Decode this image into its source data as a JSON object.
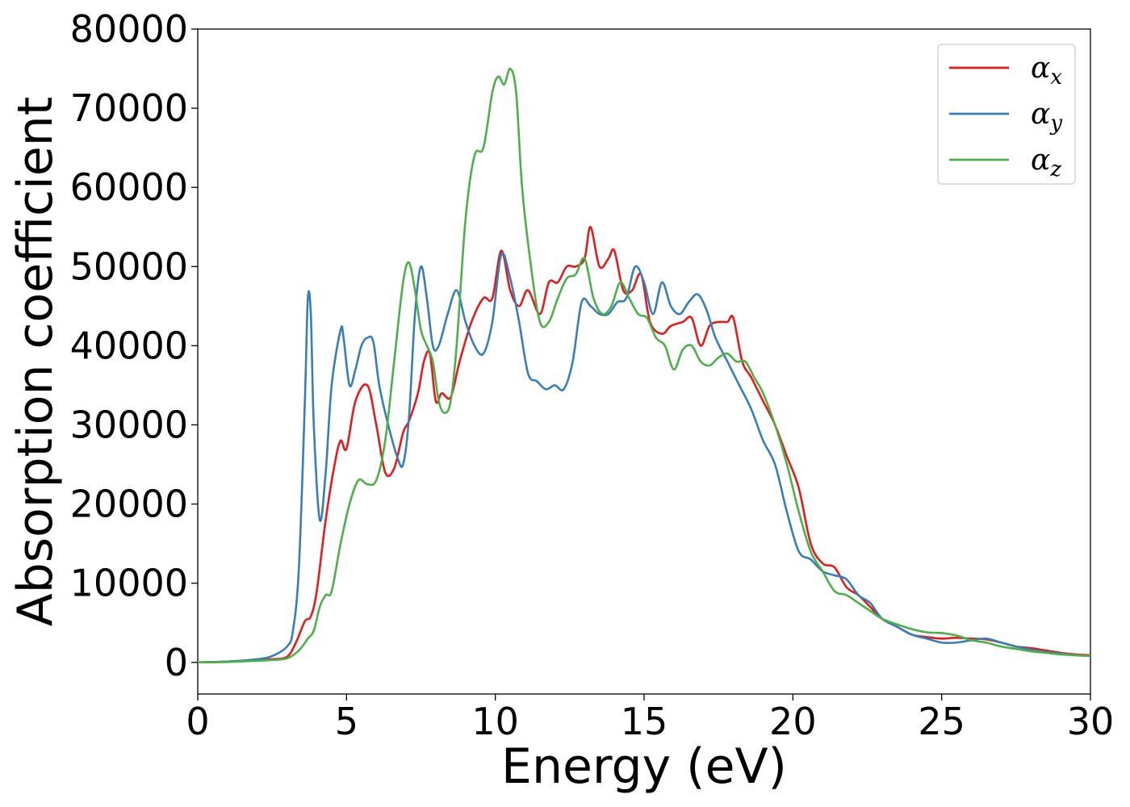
{
  "chart_data": {
    "type": "line",
    "title": "",
    "xlabel": "Energy (eV)",
    "ylabel": "Absorption coefficient",
    "xlim": [
      0,
      30
    ],
    "ylim": [
      -4000,
      80000
    ],
    "xticks": [
      0,
      5,
      10,
      15,
      20,
      25,
      30
    ],
    "yticks": [
      0,
      10000,
      20000,
      30000,
      40000,
      50000,
      60000,
      70000,
      80000
    ],
    "grid": false,
    "legend_position": "top-right",
    "series": [
      {
        "name": "α",
        "subscript": "x",
        "color": "#e41a1c",
        "x": [
          0,
          1,
          2,
          2.5,
          3,
          3.3,
          3.6,
          3.8,
          4,
          4.3,
          4.6,
          4.8,
          5,
          5.3,
          5.7,
          6,
          6.3,
          6.6,
          6.9,
          7.1,
          7.4,
          7.6,
          7.8,
          8,
          8.2,
          8.5,
          8.8,
          9.2,
          9.6,
          9.9,
          10.2,
          10.5,
          10.8,
          11.1,
          11.5,
          11.8,
          12.1,
          12.4,
          12.7,
          13,
          13.2,
          13.5,
          13.8,
          14,
          14.3,
          14.6,
          14.9,
          15.2,
          15.6,
          15.9,
          16.3,
          16.6,
          16.9,
          17.2,
          17.5,
          17.8,
          18,
          18.3,
          18.6,
          19,
          19.4,
          19.8,
          20.2,
          20.6,
          21,
          21.4,
          21.8,
          22.2,
          22.6,
          23,
          23.5,
          24,
          24.5,
          25,
          25.5,
          26,
          26.5,
          27,
          27.5,
          28,
          28.5,
          29,
          29.5,
          30
        ],
        "y": [
          0,
          100,
          300,
          400,
          700,
          2500,
          5200,
          5800,
          9000,
          18000,
          25000,
          28000,
          27000,
          33000,
          35000,
          30000,
          24000,
          24500,
          29000,
          30500,
          34000,
          38000,
          39000,
          33000,
          34000,
          33500,
          38000,
          43000,
          46000,
          46000,
          52000,
          47000,
          45000,
          47000,
          44000,
          48000,
          48000,
          50000,
          50000,
          51000,
          55000,
          50000,
          51000,
          52000,
          47000,
          47000,
          49000,
          43000,
          41500,
          42500,
          43000,
          43500,
          40000,
          42500,
          43000,
          43000,
          43500,
          38000,
          36000,
          33000,
          30000,
          26000,
          22000,
          15000,
          12500,
          12000,
          9500,
          8500,
          7000,
          5500,
          4500,
          3500,
          3200,
          3000,
          3100,
          3000,
          2900,
          2500,
          2000,
          1800,
          1500,
          1200,
          1000,
          900
        ]
      },
      {
        "name": "α",
        "subscript": "y",
        "color": "#377eb8",
        "x": [
          0,
          1,
          2,
          2.5,
          3,
          3.2,
          3.4,
          3.6,
          3.7,
          3.8,
          3.9,
          4.1,
          4.3,
          4.5,
          4.8,
          4.9,
          5.1,
          5.3,
          5.5,
          5.7,
          5.9,
          6.1,
          6.4,
          6.7,
          6.9,
          7.1,
          7.3,
          7.5,
          7.7,
          7.9,
          8.1,
          8.4,
          8.7,
          9.0,
          9.3,
          9.6,
          9.9,
          10.2,
          10.5,
          10.8,
          11.1,
          11.4,
          11.7,
          12.0,
          12.3,
          12.6,
          12.9,
          13.2,
          13.5,
          13.8,
          14.1,
          14.4,
          14.7,
          15.0,
          15.3,
          15.6,
          15.9,
          16.2,
          16.5,
          16.8,
          17.1,
          17.4,
          17.8,
          18.2,
          18.6,
          19.0,
          19.4,
          19.8,
          20.2,
          20.6,
          21.0,
          21.4,
          21.8,
          22.2,
          22.6,
          23.0,
          23.5,
          24.0,
          24.5,
          25.0,
          25.5,
          26.0,
          26.5,
          27.0,
          27.5,
          28.0,
          28.5,
          29.0,
          29.5,
          30.0
        ],
        "y": [
          0,
          100,
          400,
          800,
          2000,
          4000,
          12000,
          33000,
          46000,
          44000,
          30000,
          18000,
          24000,
          35000,
          42000,
          41000,
          35000,
          37000,
          40000,
          41000,
          40500,
          35000,
          30000,
          26000,
          25000,
          31000,
          44000,
          50000,
          46000,
          40000,
          40000,
          44000,
          47000,
          43000,
          40000,
          39000,
          43000,
          51500,
          48500,
          43000,
          36500,
          35500,
          34500,
          35000,
          34500,
          38000,
          45500,
          45000,
          44000,
          44000,
          45500,
          46000,
          50000,
          48000,
          44000,
          48000,
          45000,
          44000,
          45500,
          46500,
          44500,
          41000,
          38000,
          35000,
          32000,
          28000,
          25000,
          19000,
          14000,
          13000,
          11500,
          11000,
          10500,
          8500,
          7500,
          5500,
          4500,
          3500,
          3000,
          2500,
          2500,
          2800,
          3000,
          2500,
          2000,
          1600,
          1300,
          1100,
          900,
          800
        ]
      },
      {
        "name": "α",
        "subscript": "z",
        "color": "#4daf4a",
        "x": [
          0,
          1,
          2,
          2.5,
          3,
          3.4,
          3.7,
          3.9,
          4.1,
          4.3,
          4.5,
          4.8,
          5.1,
          5.4,
          5.7,
          6.0,
          6.3,
          6.6,
          6.9,
          7.1,
          7.3,
          7.5,
          7.7,
          7.9,
          8.1,
          8.3,
          8.5,
          8.7,
          9.0,
          9.3,
          9.6,
          9.9,
          10.1,
          10.3,
          10.5,
          10.7,
          10.9,
          11.2,
          11.5,
          11.8,
          12.1,
          12.4,
          12.7,
          13.0,
          13.3,
          13.6,
          13.9,
          14.2,
          14.5,
          14.8,
          15.1,
          15.4,
          15.7,
          16.0,
          16.3,
          16.6,
          16.9,
          17.2,
          17.5,
          17.8,
          18.1,
          18.4,
          18.7,
          19.0,
          19.4,
          19.8,
          20.2,
          20.6,
          21.0,
          21.4,
          21.8,
          22.2,
          22.6,
          23.0,
          23.5,
          24.0,
          24.5,
          25.0,
          25.5,
          26.0,
          26.5,
          27.0,
          27.5,
          28.0,
          28.5,
          29.0,
          29.5,
          30.0
        ],
        "y": [
          0,
          50,
          200,
          300,
          500,
          1500,
          3000,
          4000,
          7000,
          8500,
          9000,
          15000,
          20000,
          23000,
          22500,
          23000,
          28000,
          38000,
          48000,
          50500,
          47000,
          42000,
          40000,
          38000,
          33000,
          31500,
          33000,
          40000,
          56000,
          64000,
          65000,
          72000,
          74000,
          73000,
          75000,
          72000,
          60000,
          50000,
          43000,
          43000,
          46000,
          48500,
          49000,
          51000,
          46000,
          44000,
          45000,
          48000,
          46000,
          44000,
          43500,
          41000,
          40000,
          37000,
          39500,
          40000,
          38000,
          37500,
          38500,
          39000,
          38000,
          38000,
          36000,
          34000,
          30000,
          25000,
          19000,
          14000,
          11500,
          9000,
          8500,
          7500,
          6500,
          5500,
          4800,
          4200,
          3800,
          3700,
          3400,
          2800,
          2500,
          2000,
          1700,
          1400,
          1200,
          1000,
          900,
          800
        ]
      }
    ]
  }
}
